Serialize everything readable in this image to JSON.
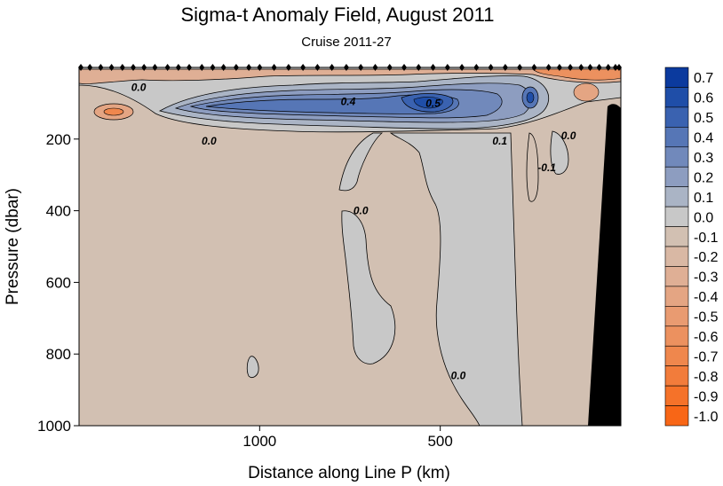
{
  "chart_data": {
    "type": "contour",
    "title": "Sigma-t Anomaly Field,  August 2011",
    "subtitle": "Cruise 2011-27",
    "xlabel": "Distance along Line P  (km)",
    "ylabel": "Pressure  (dbar)",
    "xlim": [
      1500,
      0
    ],
    "ylim": [
      1000,
      0
    ],
    "x_ticks": [
      {
        "value": 1000,
        "label": "1000"
      },
      {
        "value": 500,
        "label": "500"
      }
    ],
    "y_ticks": [
      {
        "value": 200,
        "label": "200"
      },
      {
        "value": 400,
        "label": "400"
      },
      {
        "value": 600,
        "label": "600"
      },
      {
        "value": 800,
        "label": "800"
      },
      {
        "value": 1000,
        "label": "1000"
      }
    ],
    "colorbar": {
      "levels": [
        0.7,
        0.6,
        0.5,
        0.4,
        0.3,
        0.2,
        0.1,
        0.0,
        -0.1,
        -0.2,
        -0.3,
        -0.4,
        -0.5,
        -0.6,
        -0.7,
        -0.8,
        -0.9,
        -1.0
      ],
      "labels": [
        "0.7",
        "0.6",
        "0.5",
        "0.4",
        "0.3",
        "0.2",
        "0.1",
        "0.0",
        "-0.1",
        "-0.2",
        "-0.3",
        "-0.4",
        "-0.5",
        "-0.6",
        "-0.7",
        "-0.8",
        "-0.9",
        "-1.0"
      ],
      "colors": [
        "#0b3a9e",
        "#1f4ea8",
        "#3a62b0",
        "#5676b6",
        "#7189bb",
        "#8d9dc0",
        "#aab4c5",
        "#c8c8c8",
        "#d2c0b2",
        "#d9b8a4",
        "#dfaf95",
        "#e4a583",
        "#e99b71",
        "#ec915f",
        "#ef874d",
        "#f27c3b",
        "#f57229",
        "#f86616"
      ]
    },
    "contour_labels": [
      {
        "text": "0.0",
        "x": 1335,
        "y": 65
      },
      {
        "text": "0.0",
        "x": 1140,
        "y": 215
      },
      {
        "text": "0.4",
        "x": 755,
        "y": 105
      },
      {
        "text": "0.5",
        "x": 520,
        "y": 110
      },
      {
        "text": "0.1",
        "x": 335,
        "y": 215
      },
      {
        "text": "0.0",
        "x": 145,
        "y": 200
      },
      {
        "text": "-0.1",
        "x": 205,
        "y": 290
      },
      {
        "text": "0.0",
        "x": 720,
        "y": 410
      },
      {
        "text": "0.0",
        "x": 450,
        "y": 870
      }
    ],
    "stations_km": [
      1495,
      1470,
      1440,
      1410,
      1380,
      1350,
      1320,
      1290,
      1255,
      1225,
      1195,
      1160,
      1130,
      1100,
      1065,
      1030,
      1000,
      960,
      920,
      880,
      840,
      800,
      760,
      720,
      680,
      640,
      600,
      560,
      520,
      480,
      440,
      400,
      360,
      320,
      280,
      240,
      200,
      170,
      140,
      110,
      85,
      60,
      35,
      15,
      5
    ],
    "colors": {
      "background_negative": "#d2c0b2",
      "zero_band": "#c8c8c8",
      "bathymetry": "#000000"
    },
    "grid": false,
    "legend_placement": "right colorbar"
  }
}
